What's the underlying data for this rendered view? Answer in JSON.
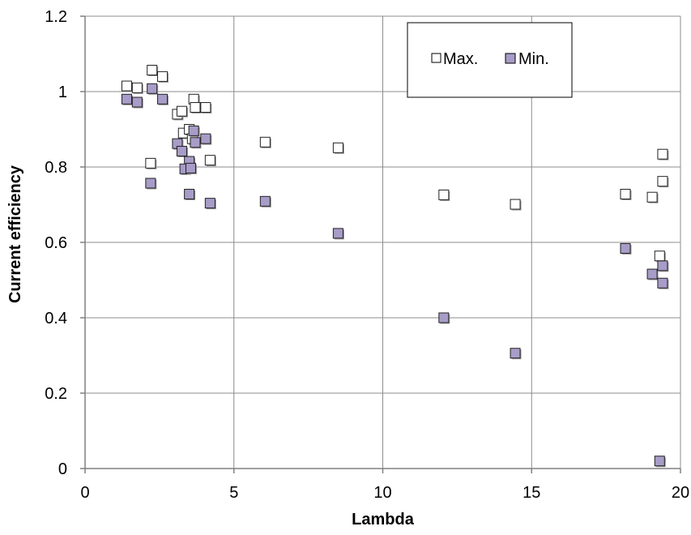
{
  "chart_data": {
    "type": "scatter",
    "title": "",
    "xlabel": "Lambda",
    "ylabel": "Current efficiency",
    "xlim": [
      0,
      20
    ],
    "ylim": [
      0,
      1.2
    ],
    "x_ticks": [
      0,
      5,
      10,
      15,
      20
    ],
    "y_ticks": [
      0,
      0.2,
      0.4,
      0.6,
      0.8,
      1,
      1.2
    ],
    "x_tick_labels": [
      "0",
      "5",
      "10",
      "15",
      "20"
    ],
    "y_tick_labels": [
      "0",
      "0.2",
      "0.4",
      "0.6",
      "0.8",
      "1",
      "1.2"
    ],
    "grid": true,
    "legend_position": "top-right",
    "series": [
      {
        "name": "Max.",
        "color": "#ffffff",
        "marker": "square",
        "points": [
          [
            1.4,
            1.015
          ],
          [
            1.75,
            1.01
          ],
          [
            2.25,
            1.057
          ],
          [
            2.6,
            1.04
          ],
          [
            3.1,
            0.94
          ],
          [
            3.25,
            0.948
          ],
          [
            3.65,
            0.98
          ],
          [
            3.7,
            0.958
          ],
          [
            4.05,
            0.958
          ],
          [
            3.3,
            0.89
          ],
          [
            3.5,
            0.9
          ],
          [
            3.6,
            0.875
          ],
          [
            2.2,
            0.81
          ],
          [
            4.2,
            0.818
          ],
          [
            6.05,
            0.866
          ],
          [
            8.5,
            0.851
          ],
          [
            12.05,
            0.726
          ],
          [
            14.45,
            0.701
          ],
          [
            18.15,
            0.728
          ],
          [
            19.05,
            0.72
          ],
          [
            19.4,
            0.834
          ],
          [
            19.4,
            0.762
          ],
          [
            19.3,
            0.564
          ]
        ]
      },
      {
        "name": "Min.",
        "color": "#a89cc8",
        "marker": "square",
        "points": [
          [
            1.4,
            0.98
          ],
          [
            1.75,
            0.972
          ],
          [
            2.25,
            1.008
          ],
          [
            2.6,
            0.98
          ],
          [
            3.1,
            0.862
          ],
          [
            3.25,
            0.842
          ],
          [
            3.65,
            0.896
          ],
          [
            3.7,
            0.865
          ],
          [
            4.05,
            0.875
          ],
          [
            3.5,
            0.815
          ],
          [
            3.35,
            0.795
          ],
          [
            3.55,
            0.797
          ],
          [
            2.2,
            0.757
          ],
          [
            3.5,
            0.728
          ],
          [
            4.2,
            0.704
          ],
          [
            6.05,
            0.709
          ],
          [
            8.5,
            0.624
          ],
          [
            12.05,
            0.4
          ],
          [
            14.45,
            0.306
          ],
          [
            18.15,
            0.584
          ],
          [
            19.05,
            0.516
          ],
          [
            19.4,
            0.538
          ],
          [
            19.4,
            0.492
          ],
          [
            19.3,
            0.02
          ]
        ]
      }
    ]
  }
}
